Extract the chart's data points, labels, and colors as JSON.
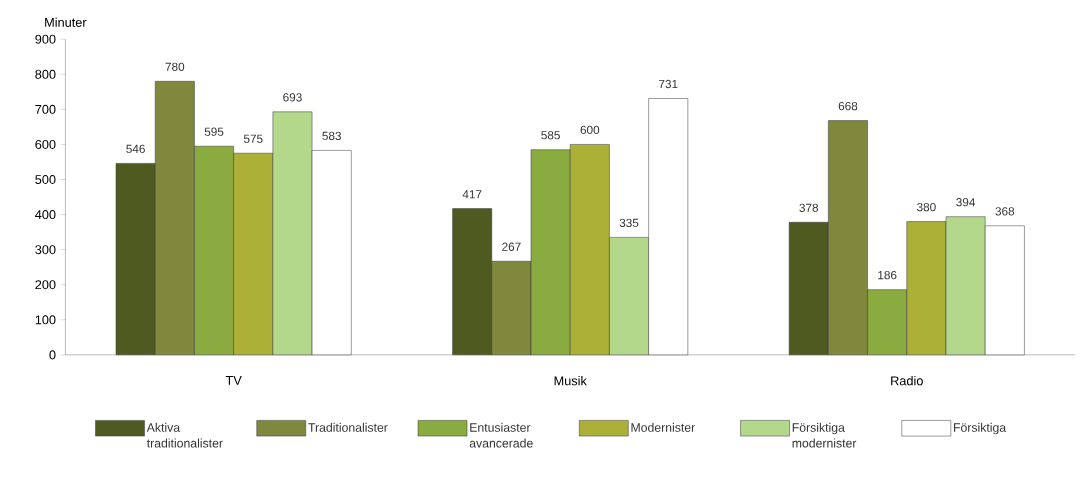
{
  "chart_data": {
    "type": "bar",
    "ylabel": "Minuter",
    "categories": [
      "TV",
      "Musik",
      "Radio"
    ],
    "series": [
      {
        "name": "Aktiva traditionalister",
        "color": "#4e5a20",
        "values": [
          546,
          417,
          378
        ]
      },
      {
        "name": "Traditionalister",
        "color": "#7f883d",
        "values": [
          780,
          267,
          668
        ]
      },
      {
        "name": "Entusiaster avancerade",
        "color": "#8aab3f",
        "values": [
          595,
          585,
          186
        ]
      },
      {
        "name": "Modernister",
        "color": "#adb036",
        "values": [
          575,
          600,
          380
        ]
      },
      {
        "name": "Försiktiga modernister",
        "color": "#b3d88c",
        "values": [
          693,
          335,
          394
        ]
      },
      {
        "name": "Försiktiga",
        "color": "#ffffff",
        "values": [
          583,
          731,
          368
        ]
      }
    ],
    "ylim": [
      0,
      900
    ],
    "yticks": [
      0,
      100,
      200,
      300,
      400,
      500,
      600,
      700,
      800,
      900
    ],
    "data_labels": true,
    "legend": "bottom"
  }
}
